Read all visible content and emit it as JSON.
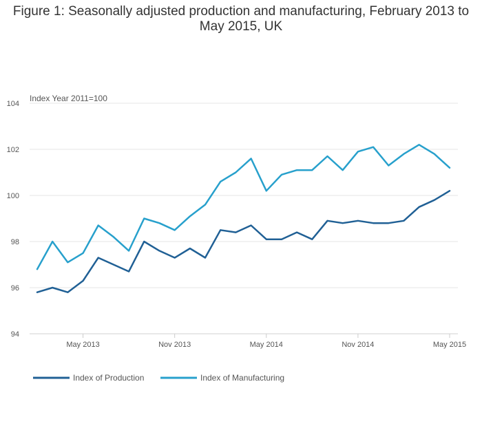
{
  "chart_data": {
    "type": "line",
    "title": "Figure 1: Seasonally adjusted production and manufacturing, February 2013 to May 2015, UK",
    "ylabel": "Index Year 2011=100",
    "xlabel": "",
    "ylim": [
      94,
      104
    ],
    "yticks": [
      94,
      96,
      98,
      100,
      102,
      104
    ],
    "x": [
      "Feb 2013",
      "Mar 2013",
      "Apr 2013",
      "May 2013",
      "Jun 2013",
      "Jul 2013",
      "Aug 2013",
      "Sep 2013",
      "Oct 2013",
      "Nov 2013",
      "Dec 2013",
      "Jan 2014",
      "Feb 2014",
      "Mar 2014",
      "Apr 2014",
      "May 2014",
      "Jun 2014",
      "Jul 2014",
      "Aug 2014",
      "Sep 2014",
      "Oct 2014",
      "Nov 2014",
      "Dec 2014",
      "Jan 2015",
      "Feb 2015",
      "Mar 2015",
      "Apr 2015",
      "May 2015"
    ],
    "xtick_labels": [
      "May 2013",
      "Nov 2013",
      "May 2014",
      "Nov 2014",
      "May 2015"
    ],
    "xtick_positions": [
      3,
      9,
      15,
      21,
      27
    ],
    "grid": true,
    "legend_position": "bottom-left",
    "series": [
      {
        "name": "Index of Production",
        "color": "#206095",
        "values": [
          95.8,
          96.0,
          95.8,
          96.3,
          97.3,
          97.0,
          96.7,
          98.0,
          97.6,
          97.3,
          97.7,
          97.3,
          98.5,
          98.4,
          98.7,
          98.1,
          98.1,
          98.4,
          98.1,
          98.9,
          98.8,
          98.9,
          98.8,
          98.8,
          98.9,
          99.5,
          99.8,
          100.2
        ]
      },
      {
        "name": "Index of Manufacturing",
        "color": "#27a0cc",
        "values": [
          96.8,
          98.0,
          97.1,
          97.5,
          98.7,
          98.2,
          97.6,
          99.0,
          98.8,
          98.5,
          99.1,
          99.6,
          100.6,
          101.0,
          101.6,
          100.2,
          100.9,
          101.1,
          101.1,
          101.7,
          101.1,
          101.9,
          102.1,
          101.3,
          101.8,
          102.2,
          101.8,
          101.2
        ]
      }
    ]
  }
}
